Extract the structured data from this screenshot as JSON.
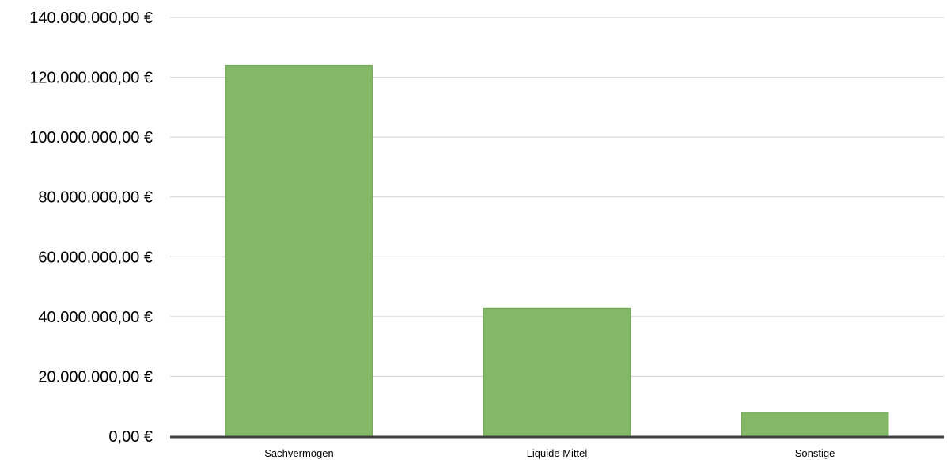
{
  "chart_data": {
    "type": "bar",
    "categories": [
      "Sachvermögen",
      "Liquide Mittel",
      "Sonstige"
    ],
    "values": [
      124000000,
      42800000,
      8000000
    ],
    "ylim": [
      0,
      140000000
    ],
    "y_ticks": [
      0,
      20000000,
      40000000,
      60000000,
      80000000,
      100000000,
      120000000,
      140000000
    ],
    "y_tick_labels": [
      "0,00 €",
      "20.000.000,00 €",
      "40.000.000,00 €",
      "60.000.000,00 €",
      "80.000.000,00 €",
      "100.000.000,00 €",
      "120.000.000,00 €",
      "140.000.000,00 €"
    ],
    "grid": true,
    "legend": "none",
    "colors": {
      "bar": "#82b866",
      "bar_edge": "#6fa653",
      "grid": "#d0d0d0",
      "axis": "#404040"
    }
  }
}
